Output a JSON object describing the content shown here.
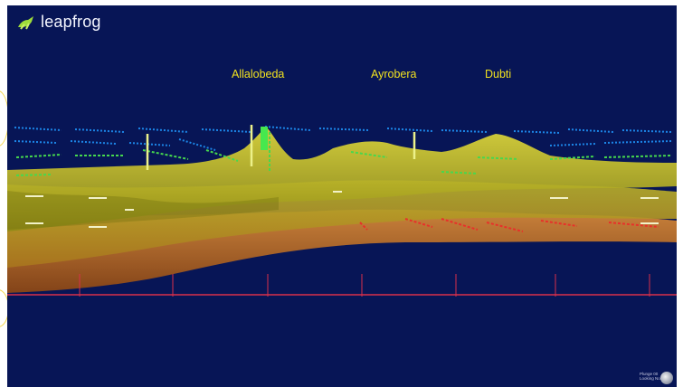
{
  "app": {
    "logo_text": "leapfrog",
    "logo_icon": "leapfrog-frog-icon"
  },
  "viewport": {
    "background": "#071556",
    "labels": [
      {
        "id": "allalobeda",
        "text": "Allalobeda"
      },
      {
        "id": "ayrobera",
        "text": "Ayrobera"
      },
      {
        "id": "dubti",
        "text": "Dubti"
      }
    ],
    "view_info": {
      "plunge": "Plunge 00",
      "looking": "Looking North"
    },
    "compass_icon": "compass-icon"
  },
  "colors": {
    "label": "#f2e21f",
    "surface_top": "#c7c628",
    "surface_mid": "#c49a2a",
    "surface_low": "#c9702a",
    "section_line": "#d8304a",
    "drillhole_blue": "#1c86e8",
    "drillhole_green": "#46d84e",
    "drillhole_red": "#e8302a"
  }
}
